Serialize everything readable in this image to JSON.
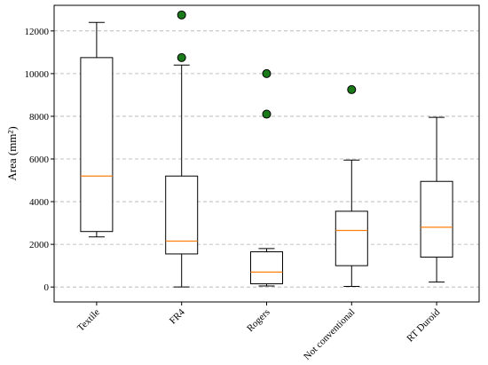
{
  "chart_data": {
    "type": "box",
    "title": "",
    "xlabel": "",
    "ylabel": "Area (mm²)",
    "ylim": [
      -700,
      13200
    ],
    "yticks": [
      0,
      2000,
      4000,
      6000,
      8000,
      10000,
      12000
    ],
    "grid": {
      "y": true,
      "style": "dashed"
    },
    "colors": {
      "median": "#ff7f0e",
      "box": "#000000",
      "flier_fill": "#1a7a1a",
      "flier_edge": "#000000",
      "grid": "#b0b0b0"
    },
    "categories": [
      "Textile",
      "FR4",
      "Rogers",
      "Not conventional",
      "RT Duroid"
    ],
    "boxes": [
      {
        "category": "Textile",
        "whisker_low": 2350,
        "q1": 2600,
        "median": 5200,
        "q3": 10750,
        "whisker_high": 12400,
        "outliers": []
      },
      {
        "category": "FR4",
        "whisker_low": 0,
        "q1": 1550,
        "median": 2150,
        "q3": 5200,
        "whisker_high": 10400,
        "outliers": [
          10750,
          12750
        ]
      },
      {
        "category": "Rogers",
        "whisker_low": 50,
        "q1": 150,
        "median": 700,
        "q3": 1650,
        "whisker_high": 1800,
        "outliers": [
          8100,
          10000
        ]
      },
      {
        "category": "Not conventional",
        "whisker_low": 30,
        "q1": 1000,
        "median": 2650,
        "q3": 3550,
        "whisker_high": 5950,
        "outliers": [
          9250
        ]
      },
      {
        "category": "RT Duroid",
        "whisker_low": 230,
        "q1": 1400,
        "median": 2800,
        "q3": 4950,
        "whisker_high": 7950,
        "outliers": []
      }
    ]
  }
}
